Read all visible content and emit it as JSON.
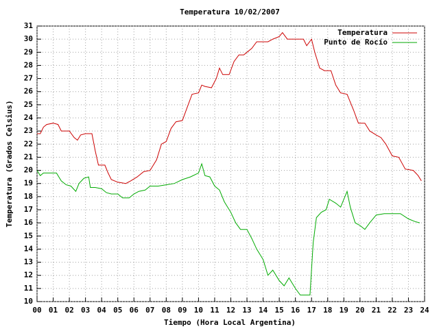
{
  "chart_data": {
    "type": "line",
    "title": "Temperatura 10/02/2007",
    "x_label": "Tiempo (Hora Local Argentina)",
    "y_label": "Temperatura (Grados Celsius)",
    "xlim": [
      0,
      24
    ],
    "ylim": [
      10,
      31
    ],
    "xticks": [
      {
        "value": 0,
        "label": "00"
      },
      {
        "value": 1,
        "label": "01"
      },
      {
        "value": 2,
        "label": "02"
      },
      {
        "value": 3,
        "label": "03"
      },
      {
        "value": 4,
        "label": "04"
      },
      {
        "value": 5,
        "label": "05"
      },
      {
        "value": 6,
        "label": "06"
      },
      {
        "value": 7,
        "label": "07"
      },
      {
        "value": 8,
        "label": "08"
      },
      {
        "value": 9,
        "label": "09"
      },
      10,
      11,
      12,
      13,
      14,
      15,
      16,
      17,
      18,
      19,
      20,
      21,
      22,
      23,
      24
    ],
    "yticks": [
      10,
      11,
      12,
      13,
      14,
      15,
      16,
      17,
      18,
      19,
      20,
      21,
      22,
      23,
      24,
      25,
      26,
      27,
      28,
      29,
      30,
      31
    ],
    "grid": true,
    "legend": "top-right",
    "series": [
      {
        "name": "Temperatura",
        "color": "#cc0000",
        "x": [
          0,
          0.2,
          0.4,
          0.6,
          1,
          1.3,
          1.5,
          2,
          2.3,
          2.5,
          2.7,
          3,
          3.4,
          3.6,
          3.8,
          4.2,
          4.4,
          4.6,
          5,
          5.5,
          5.8,
          6.2,
          6.6,
          7,
          7.4,
          7.7,
          8,
          8.3,
          8.6,
          9,
          9.3,
          9.6,
          10,
          10.2,
          10.4,
          10.8,
          11.1,
          11.3,
          11.5,
          11.9,
          12.2,
          12.5,
          12.8,
          13,
          13.3,
          13.6,
          14,
          14.3,
          14.6,
          15,
          15.2,
          15.5,
          16,
          16.5,
          16.7,
          17,
          17.2,
          17.5,
          17.8,
          18.2,
          18.5,
          18.8,
          19.2,
          19.6,
          19.9,
          20.3,
          20.6,
          21,
          21.3,
          21.6,
          22,
          22.4,
          22.8,
          23.3,
          23.6,
          23.8
        ],
        "values": [
          22.8,
          22.8,
          23.3,
          23.5,
          23.6,
          23.5,
          23,
          23,
          22.5,
          22.3,
          22.7,
          22.8,
          22.8,
          21.5,
          20.4,
          20.4,
          19.8,
          19.3,
          19.1,
          19,
          19.2,
          19.5,
          19.9,
          20,
          20.8,
          22,
          22.2,
          23.2,
          23.7,
          23.8,
          24.8,
          25.8,
          25.9,
          26.5,
          26.4,
          26.3,
          27,
          27.8,
          27.3,
          27.3,
          28.3,
          28.8,
          28.8,
          29,
          29.3,
          29.8,
          29.8,
          29.8,
          30,
          30.2,
          30.5,
          30,
          30,
          30,
          29.5,
          30,
          29,
          27.8,
          27.6,
          27.6,
          26.5,
          25.9,
          25.8,
          24.6,
          23.6,
          23.6,
          23,
          22.7,
          22.5,
          22,
          21.1,
          21,
          20.1,
          20,
          19.6,
          19.2
        ]
      },
      {
        "name": "Punto de Rocío",
        "color": "#00aa00",
        "x": [
          0,
          0.2,
          0.4,
          0.8,
          1.2,
          1.5,
          1.8,
          2.1,
          2.4,
          2.6,
          2.9,
          3.2,
          3.3,
          3.6,
          4,
          4.3,
          4.6,
          5,
          5.3,
          5.7,
          6,
          6.3,
          6.7,
          7,
          7.5,
          8,
          8.5,
          9,
          9.5,
          10,
          10.2,
          10.4,
          10.7,
          11,
          11.3,
          11.6,
          12,
          12.3,
          12.6,
          13,
          13.3,
          13.6,
          14,
          14.3,
          14.6,
          15,
          15.3,
          15.6,
          16,
          16.3,
          16.7,
          16.9,
          17.1,
          17.3,
          17.6,
          17.9,
          18.1,
          18.5,
          18.8,
          19.2,
          19.4,
          19.7,
          20,
          20.3,
          20.6,
          21,
          21.5,
          22,
          22.5,
          23,
          23.4,
          23.7
        ],
        "values": [
          20,
          19.6,
          19.8,
          19.8,
          19.8,
          19.2,
          18.9,
          18.8,
          18.4,
          19,
          19.4,
          19.5,
          18.7,
          18.7,
          18.6,
          18.3,
          18.2,
          18.2,
          17.9,
          17.9,
          18.2,
          18.4,
          18.5,
          18.8,
          18.8,
          18.9,
          19,
          19.3,
          19.5,
          19.8,
          20.5,
          19.6,
          19.5,
          18.8,
          18.5,
          17.6,
          16.8,
          16,
          15.5,
          15.5,
          14.8,
          14,
          13.2,
          12,
          12.4,
          11.6,
          11.2,
          11.8,
          11,
          10.5,
          10.5,
          10.5,
          14.5,
          16.4,
          16.8,
          17,
          17.8,
          17.5,
          17.2,
          18.4,
          17.2,
          16,
          15.8,
          15.5,
          16,
          16.6,
          16.7,
          16.7,
          16.7,
          16.3,
          16.1,
          16
        ]
      }
    ]
  }
}
